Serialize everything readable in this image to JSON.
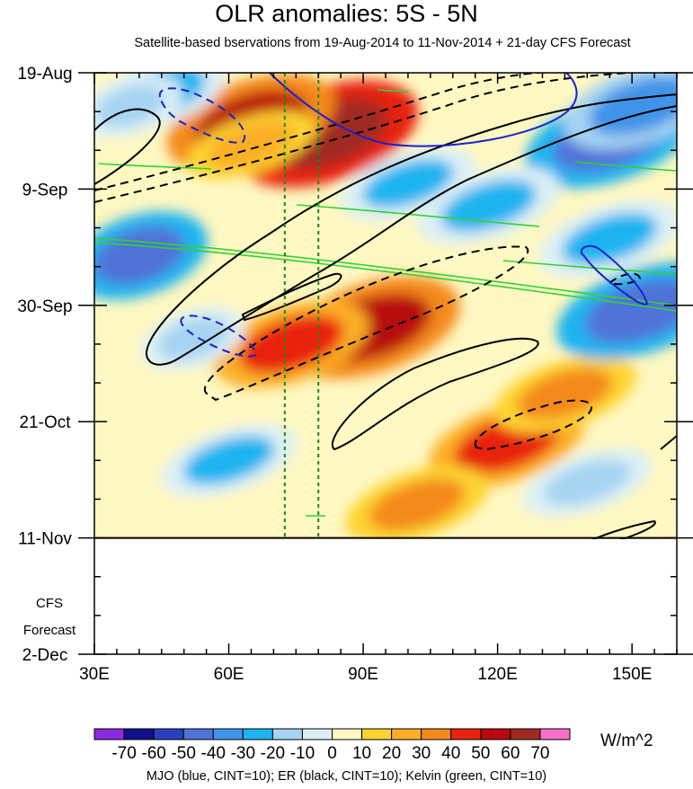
{
  "chart_data": {
    "type": "heatmap",
    "title": "OLR anomalies: 5S - 5N",
    "subtitle": "Satellite-based bservations from 19-Aug-2014 to 11-Nov-2014 + 21-day CFS Forecast",
    "x_axis": {
      "range": [
        30,
        160
      ],
      "ticks": [
        {
          "value": 30,
          "label": "30E"
        },
        {
          "value": 60,
          "label": "60E"
        },
        {
          "value": 90,
          "label": "90E"
        },
        {
          "value": 120,
          "label": "120E"
        },
        {
          "value": 150,
          "label": "150E"
        }
      ]
    },
    "y_axis": {
      "range_days": [
        0,
        105
      ],
      "ticks": [
        {
          "day": 0,
          "label": "19-Aug"
        },
        {
          "day": 21,
          "label": "9-Sep"
        },
        {
          "day": 42,
          "label": "30-Sep"
        },
        {
          "day": 63,
          "label": "21-Oct"
        },
        {
          "day": 84,
          "label": "11-Nov"
        },
        {
          "day": 105,
          "label": "2-Dec"
        }
      ]
    },
    "observation_end_day": 84,
    "forecast_label": [
      "CFS",
      "Forecast"
    ],
    "reference_longitudes": [
      72.5,
      80
    ],
    "colorbar": {
      "units": "W/m^2",
      "levels": [
        -70,
        -60,
        -50,
        -40,
        -30,
        -20,
        -10,
        0,
        10,
        20,
        30,
        40,
        50,
        60,
        70
      ],
      "colors": [
        "#8a2be2",
        "#10108f",
        "#2a3fc0",
        "#4f73d8",
        "#3f93e8",
        "#1cb4f0",
        "#a6d4f2",
        "#dcf0f6",
        "#fff8c2",
        "#fdd430",
        "#fcae28",
        "#f48a1c",
        "#e82410",
        "#b80810",
        "#a02a20",
        "#f76fc8"
      ]
    },
    "contour_legend": "MJO (blue, CINT=10); ER (black, CINT=10); Kelvin (green, CINT=10)",
    "anomaly_features": [
      {
        "lon": 92,
        "day": 46,
        "value": 55
      },
      {
        "lon": 82,
        "day": 11,
        "value": 60
      },
      {
        "lon": 65,
        "day": 9,
        "value": 50
      },
      {
        "lon": 74,
        "day": 49,
        "value": 40
      },
      {
        "lon": 122,
        "day": 67,
        "value": 40
      },
      {
        "lon": 135,
        "day": 58,
        "value": 30
      },
      {
        "lon": 102,
        "day": 78,
        "value": 30
      },
      {
        "lon": 65,
        "day": 13,
        "value": 20
      },
      {
        "lon": 145,
        "day": 12,
        "value": -50
      },
      {
        "lon": 152,
        "day": 6,
        "value": -40
      },
      {
        "lon": 152,
        "day": 43,
        "value": -50
      },
      {
        "lon": 40,
        "day": 33,
        "value": -45
      },
      {
        "lon": 46,
        "day": 3,
        "value": -30
      },
      {
        "lon": 52,
        "day": 48,
        "value": -20
      },
      {
        "lon": 60,
        "day": 70,
        "value": -25
      },
      {
        "lon": 145,
        "day": 30,
        "value": -30
      },
      {
        "lon": 118,
        "day": 24,
        "value": -30
      },
      {
        "lon": 38,
        "day": 6,
        "value": -20
      },
      {
        "lon": 100,
        "day": 20,
        "value": -25
      },
      {
        "lon": 140,
        "day": 74,
        "value": -20
      }
    ]
  }
}
